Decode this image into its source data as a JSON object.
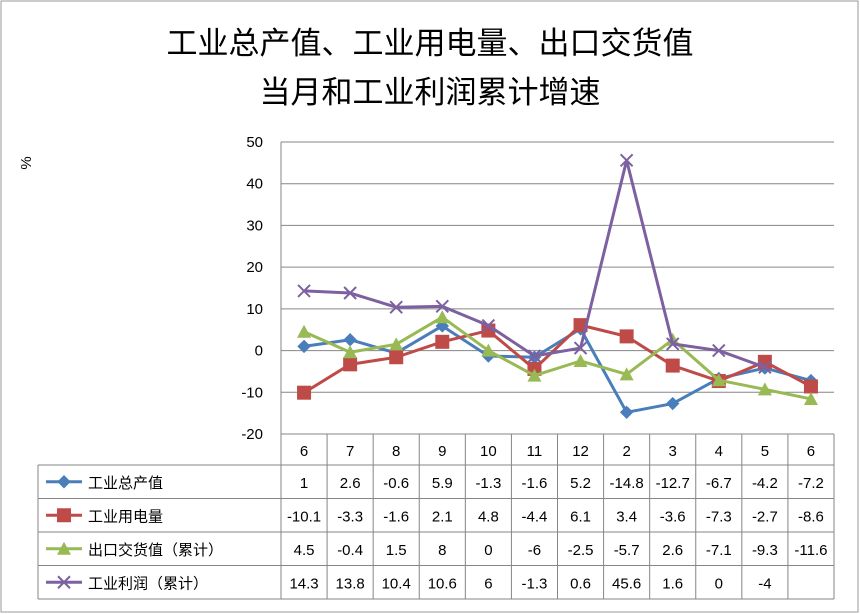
{
  "chart_data": {
    "type": "line",
    "title_lines": [
      "工业总产值、工业用电量、出口交货值",
      "当月和工业利润累计增速"
    ],
    "ylabel": "%",
    "ylim": [
      -20,
      50
    ],
    "yticks": [
      50,
      40,
      30,
      20,
      10,
      0,
      -10,
      -20
    ],
    "grid": true,
    "legend_placement": "data-table-bottom",
    "categories": [
      "6",
      "7",
      "8",
      "9",
      "10",
      "11",
      "12",
      "2",
      "3",
      "4",
      "5",
      "6"
    ],
    "series": [
      {
        "name": "工业总产值",
        "color": "#4a7ebb",
        "marker": "diamond",
        "values": [
          1,
          2.6,
          -0.6,
          5.9,
          -1.3,
          -1.6,
          5.2,
          -14.8,
          -12.7,
          -6.7,
          -4.2,
          -7.2
        ]
      },
      {
        "name": "工业用电量",
        "color": "#be4b48",
        "marker": "square",
        "values": [
          -10.1,
          -3.3,
          -1.6,
          2.1,
          4.8,
          -4.4,
          6.1,
          3.4,
          -3.6,
          -7.3,
          -2.7,
          -8.6
        ]
      },
      {
        "name": "出口交货值（累计）",
        "color": "#98b954",
        "marker": "triangle",
        "values": [
          4.5,
          -0.4,
          1.5,
          8,
          0,
          -6,
          -2.5,
          -5.7,
          2.6,
          -7.1,
          -9.3,
          -11.6
        ]
      },
      {
        "name": "工业利润（累计）",
        "color": "#7d60a0",
        "marker": "x",
        "values": [
          14.3,
          13.8,
          10.4,
          10.6,
          6,
          -1.3,
          0.6,
          45.6,
          1.6,
          0,
          -4,
          null
        ]
      }
    ]
  }
}
